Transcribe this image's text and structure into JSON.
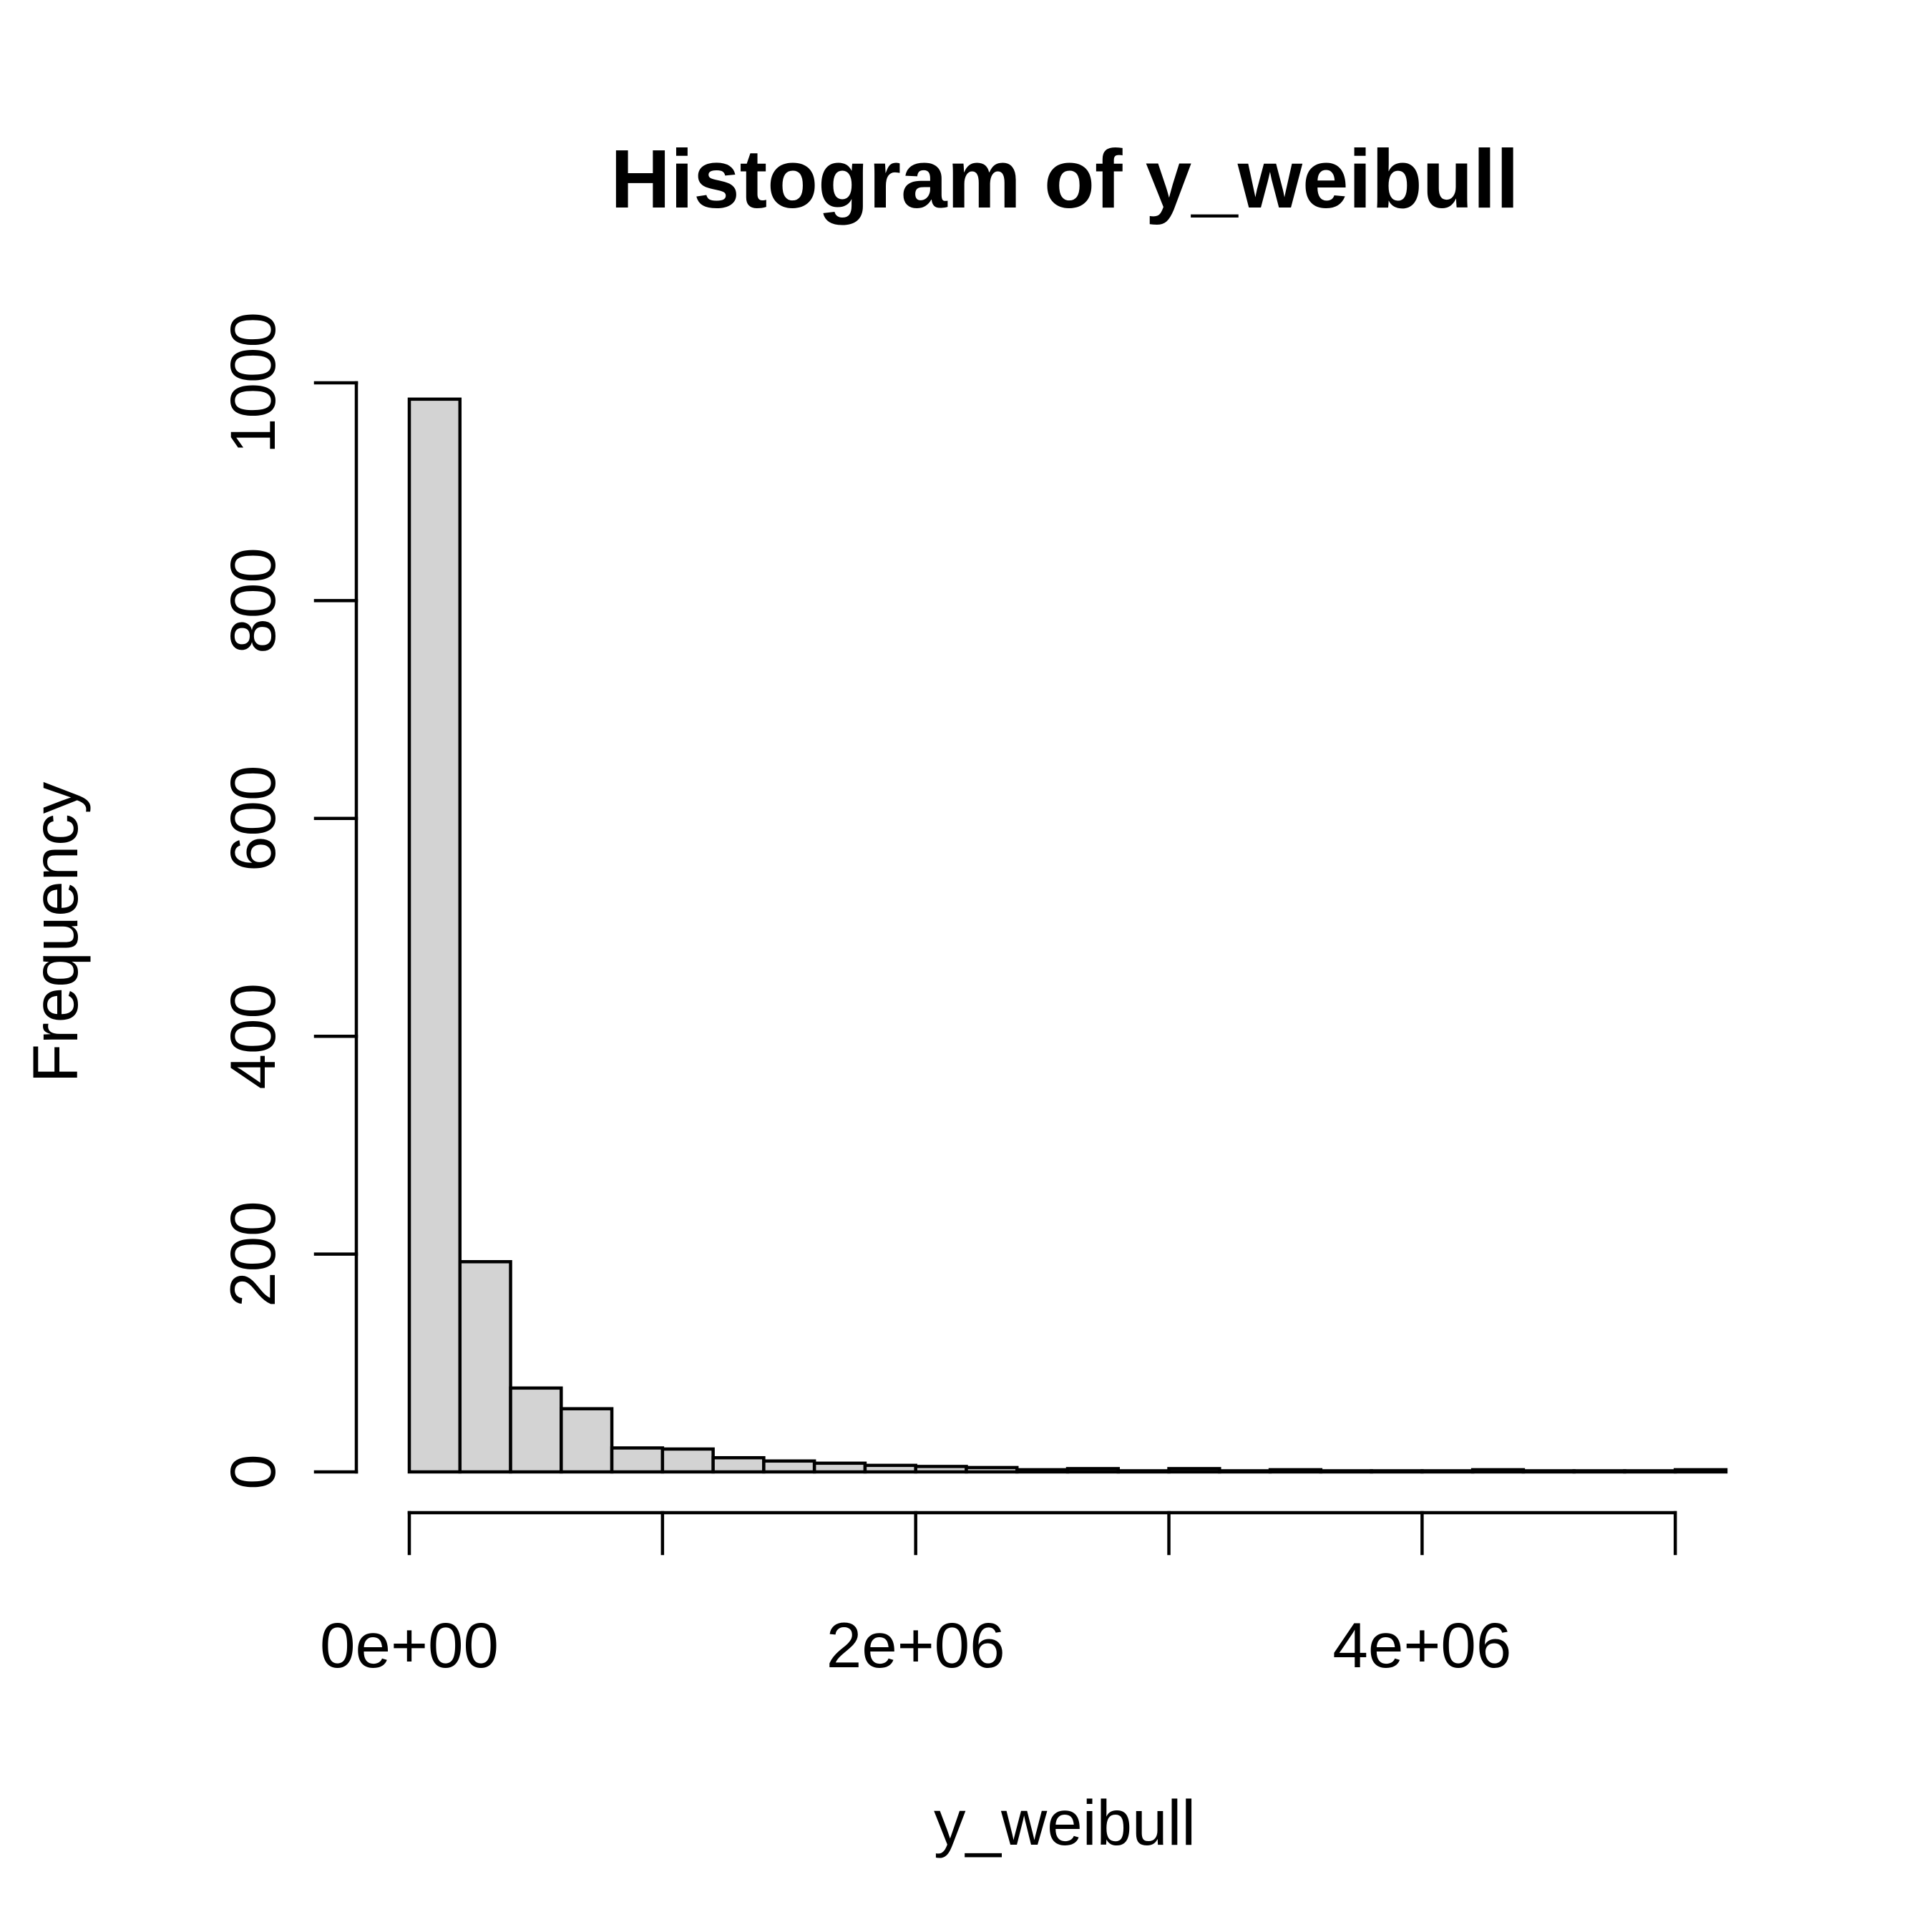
{
  "chart_data": {
    "type": "histogram",
    "title": "Histogram of y_weibull",
    "xlabel": "y_weibull",
    "ylabel": "Frequency",
    "bin_width": 200000,
    "bins": [
      {
        "start": 0,
        "end": 200000,
        "count": 985
      },
      {
        "start": 200000,
        "end": 400000,
        "count": 193
      },
      {
        "start": 400000,
        "end": 600000,
        "count": 77
      },
      {
        "start": 600000,
        "end": 800000,
        "count": 58
      },
      {
        "start": 800000,
        "end": 1000000,
        "count": 22
      },
      {
        "start": 1000000,
        "end": 1200000,
        "count": 21
      },
      {
        "start": 1200000,
        "end": 1400000,
        "count": 13
      },
      {
        "start": 1400000,
        "end": 1600000,
        "count": 10
      },
      {
        "start": 1600000,
        "end": 1800000,
        "count": 8
      },
      {
        "start": 1800000,
        "end": 2000000,
        "count": 6
      },
      {
        "start": 2000000,
        "end": 2200000,
        "count": 5
      },
      {
        "start": 2200000,
        "end": 2400000,
        "count": 4
      },
      {
        "start": 2400000,
        "end": 2600000,
        "count": 2
      },
      {
        "start": 2600000,
        "end": 2800000,
        "count": 3
      },
      {
        "start": 2800000,
        "end": 3000000,
        "count": 1
      },
      {
        "start": 3000000,
        "end": 3200000,
        "count": 3
      },
      {
        "start": 3200000,
        "end": 3400000,
        "count": 1
      },
      {
        "start": 3400000,
        "end": 3600000,
        "count": 2
      },
      {
        "start": 3600000,
        "end": 3800000,
        "count": 1
      },
      {
        "start": 3800000,
        "end": 4000000,
        "count": 1
      },
      {
        "start": 4000000,
        "end": 4200000,
        "count": 1
      },
      {
        "start": 4200000,
        "end": 4400000,
        "count": 2
      },
      {
        "start": 4400000,
        "end": 4600000,
        "count": 1
      },
      {
        "start": 4600000,
        "end": 4800000,
        "count": 1
      },
      {
        "start": 4800000,
        "end": 5000000,
        "count": 1
      },
      {
        "start": 5000000,
        "end": 5200000,
        "count": 2
      }
    ],
    "x_ticks": [
      0,
      1000000,
      2000000,
      3000000,
      4000000,
      5000000
    ],
    "x_tick_labels": [
      "0e+00",
      "",
      "2e+06",
      "",
      "4e+06",
      ""
    ],
    "y_ticks": [
      0,
      200,
      400,
      600,
      800,
      1000
    ],
    "y_tick_labels": [
      "0",
      "200",
      "400",
      "600",
      "800",
      "1000"
    ],
    "xlim": [
      0,
      5200000
    ],
    "ylim": [
      0,
      1000
    ],
    "grid": false,
    "bar_fill": "#d3d3d3",
    "bar_stroke": "#000000"
  }
}
